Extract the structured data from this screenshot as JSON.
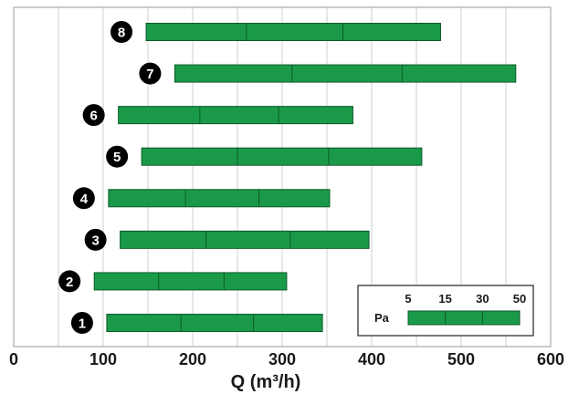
{
  "chart_data": {
    "type": "bar",
    "orientation": "horizontal",
    "xlabel": "Q (m³/h)",
    "xlim": [
      0,
      600
    ],
    "xticks": [
      "0",
      "100",
      "200",
      "300",
      "400",
      "500",
      "600"
    ],
    "grid": true,
    "bar_color": "#1a9a48",
    "badge_color": "#000000",
    "models": [
      {
        "label": "8",
        "points": [
          148,
          260,
          368,
          477
        ]
      },
      {
        "label": "7",
        "points": [
          180,
          311,
          434,
          561
        ]
      },
      {
        "label": "6",
        "points": [
          117,
          208,
          296,
          379
        ]
      },
      {
        "label": "5",
        "points": [
          143,
          250,
          352,
          456
        ]
      },
      {
        "label": "4",
        "points": [
          106,
          192,
          274,
          353
        ]
      },
      {
        "label": "3",
        "points": [
          119,
          215,
          309,
          397
        ]
      },
      {
        "label": "2",
        "points": [
          90,
          162,
          235,
          305
        ]
      },
      {
        "label": "1",
        "points": [
          104,
          187,
          268,
          345
        ]
      }
    ],
    "legend": {
      "title": "Pa",
      "pressures": [
        "5",
        "15",
        "30",
        "50"
      ],
      "position": "bottom-right"
    }
  }
}
